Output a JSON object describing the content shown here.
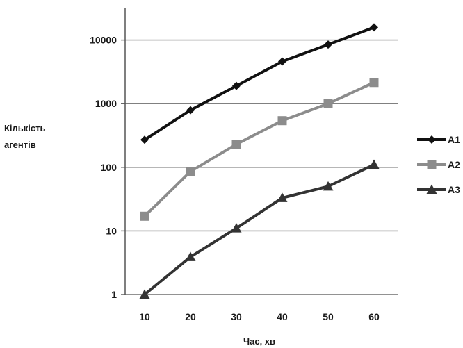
{
  "chart_data": {
    "type": "line",
    "y_scale": "log",
    "grid": "horizontal",
    "legend_position": "right",
    "x": [
      10,
      20,
      30,
      40,
      50,
      60
    ],
    "x_tick_labels": [
      "10",
      "20",
      "30",
      "40",
      "50",
      "60"
    ],
    "y_tick_values": [
      1,
      10,
      100,
      1000,
      10000
    ],
    "y_tick_labels": [
      "1",
      "10",
      "100",
      "1000",
      "10000"
    ],
    "ylim": [
      1,
      20000
    ],
    "xlabel": "Час, хв",
    "ylabel_lines": [
      "Кількість",
      "агентів"
    ],
    "series": [
      {
        "name": "A1",
        "marker": "diamond",
        "color": "#111111",
        "values": [
          270,
          790,
          1900,
          4600,
          8500,
          15800
        ]
      },
      {
        "name": "A2",
        "marker": "square",
        "color": "#8c8c8c",
        "values": [
          17,
          86,
          230,
          540,
          1000,
          2150
        ]
      },
      {
        "name": "A3",
        "marker": "triangle",
        "color": "#333333",
        "values": [
          1,
          3.9,
          11,
          33,
          50,
          110
        ]
      }
    ]
  }
}
